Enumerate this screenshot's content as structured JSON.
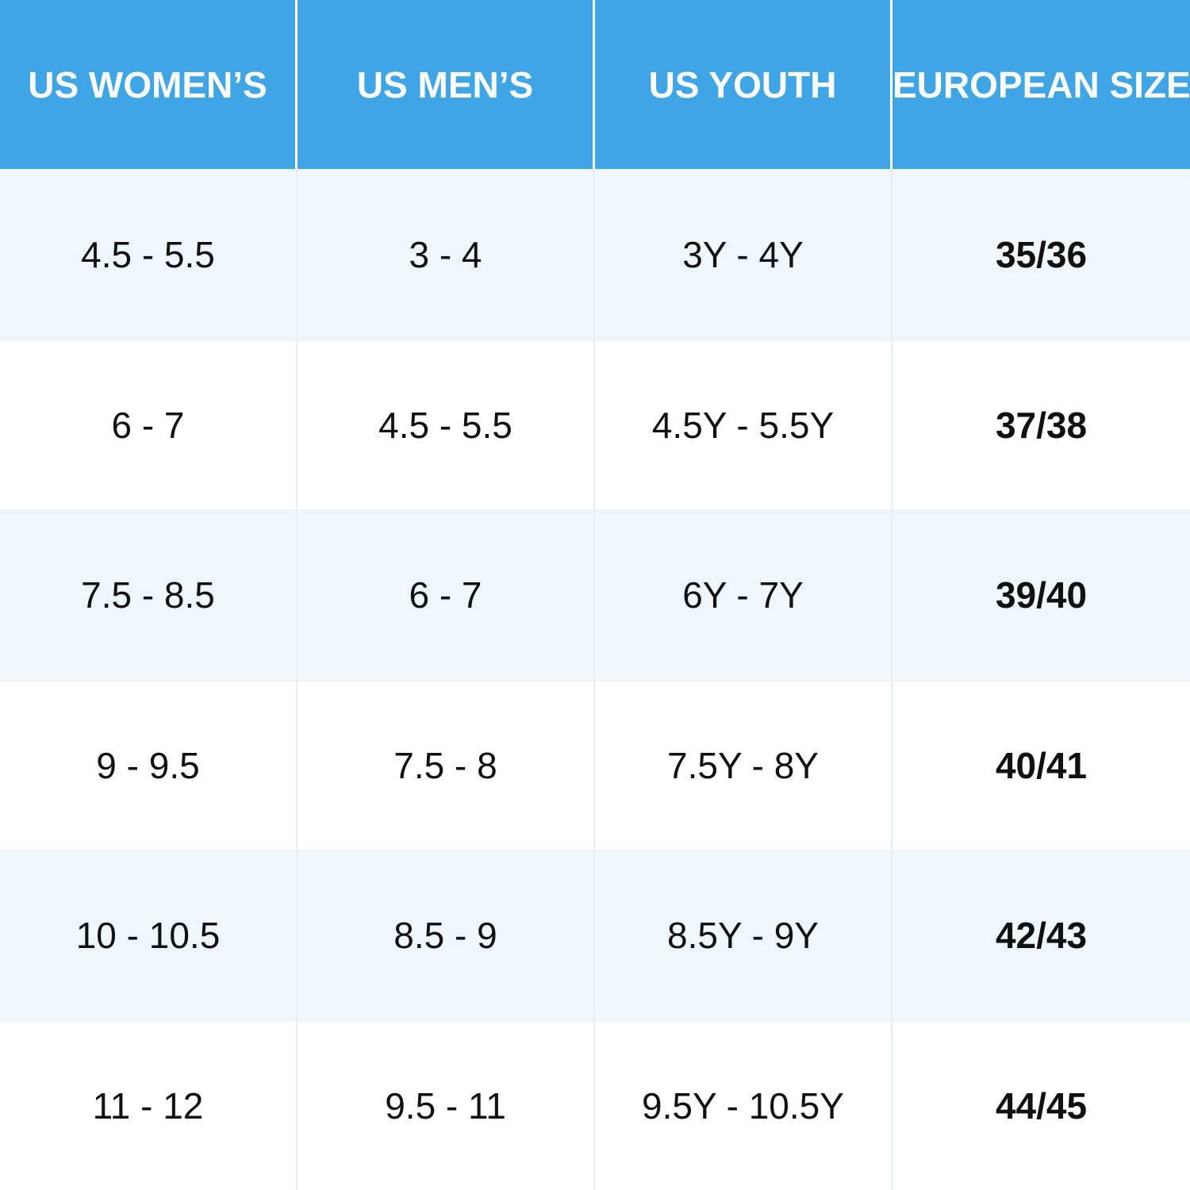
{
  "table": {
    "headers": [
      "US WOMEN’S",
      "US MEN’S",
      "US YOUTH",
      "EUROPEAN SIZE"
    ],
    "rows": [
      [
        "4.5 - 5.5",
        "3 - 4",
        "3Y - 4Y",
        "35/36"
      ],
      [
        "6 - 7",
        "4.5 - 5.5",
        "4.5Y - 5.5Y",
        "37/38"
      ],
      [
        "7.5 - 8.5",
        "6 - 7",
        "6Y - 7Y",
        "39/40"
      ],
      [
        "9 - 9.5",
        "7.5 - 8",
        "7.5Y - 8Y",
        "40/41"
      ],
      [
        "10 - 10.5",
        "8.5 - 9",
        "8.5Y - 9Y",
        "42/43"
      ],
      [
        "11 - 12",
        "9.5 - 11",
        "9.5Y - 10.5Y",
        "44/45"
      ]
    ]
  },
  "colors": {
    "header_background": "#3fa5e4",
    "header_text": "#ffffff",
    "row_alternate_background": "#eff7fd",
    "row_background": "#ffffff",
    "body_text": "#111111"
  }
}
